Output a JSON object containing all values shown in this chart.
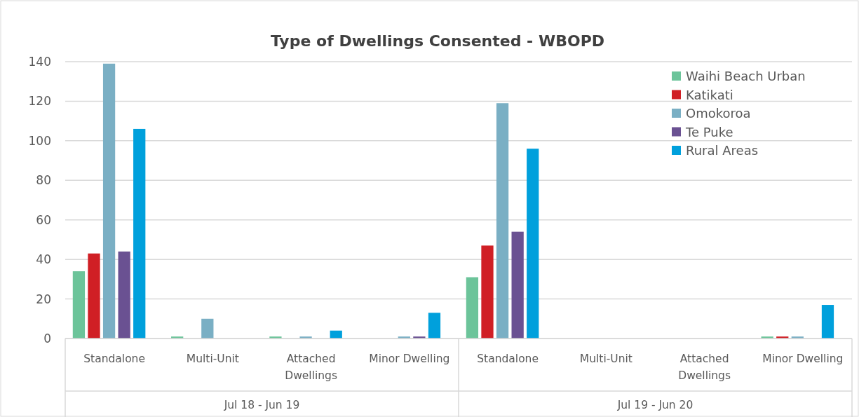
{
  "chart_data": {
    "type": "bar",
    "title": "Type of Dwellings Consented - WBOPD",
    "categories": [
      "Standalone",
      "Multi-Unit",
      "Attached Dwellings",
      "Minor Dwelling",
      "Standalone",
      "Multi-Unit",
      "Attached Dwellings",
      "Minor Dwelling"
    ],
    "annotations": [
      "Jul 18 - Jun 19",
      "Jul 19 - Jun 20"
    ],
    "series": [
      {
        "name": "Waihi Beach Urban",
        "color": "#6cc49a",
        "values": [
          34,
          1,
          1,
          0,
          31,
          0,
          0,
          1
        ]
      },
      {
        "name": "Katikati",
        "color": "#d01f25",
        "values": [
          43,
          0,
          0,
          0,
          47,
          0,
          0,
          1
        ]
      },
      {
        "name": "Omokoroa",
        "color": "#7aafc4",
        "values": [
          139,
          10,
          1,
          1,
          119,
          0,
          0,
          1
        ]
      },
      {
        "name": "Te Puke",
        "color": "#6a5192",
        "values": [
          44,
          0,
          0,
          1,
          54,
          0,
          0,
          0
        ]
      },
      {
        "name": "Rural Areas",
        "color": "#00a0dc",
        "values": [
          106,
          0,
          4,
          13,
          96,
          0,
          0,
          17
        ]
      }
    ],
    "ylim": [
      0,
      140
    ],
    "yticks": [
      0,
      20,
      40,
      60,
      80,
      100,
      120,
      140
    ],
    "grid": "y",
    "legend": "top right"
  }
}
